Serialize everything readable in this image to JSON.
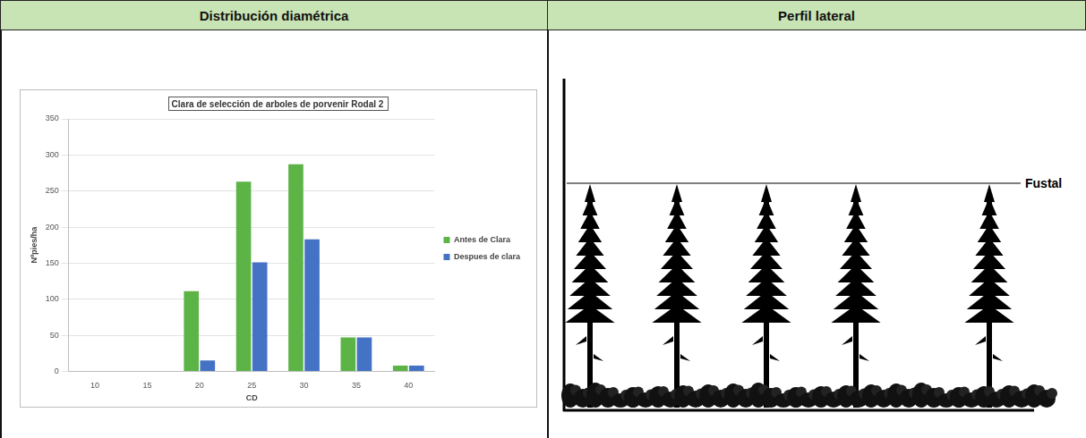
{
  "header": {
    "left": "Distribución diamétrica",
    "right": "Perfil lateral"
  },
  "chart_data": {
    "type": "bar",
    "title": "Clara de selección de arboles de porvenir Rodal 2",
    "x_label": "CD",
    "y_label": "Nºpies/ha",
    "categories": [
      "10",
      "15",
      "20",
      "25",
      "30",
      "35",
      "40"
    ],
    "series": [
      {
        "name": "Antes de Clara",
        "color": "#5cb346",
        "values": [
          0,
          0,
          111,
          263,
          287,
          47,
          8
        ]
      },
      {
        "name": "Despues de clara",
        "color": "#4472c4",
        "values": [
          0,
          0,
          15,
          151,
          183,
          47,
          8
        ]
      }
    ],
    "ylim": [
      0,
      350
    ],
    "yticks": [
      0,
      50,
      100,
      150,
      200,
      250,
      300,
      350
    ],
    "grid": true,
    "legend": "right"
  },
  "profile": {
    "label": "Fustal"
  }
}
